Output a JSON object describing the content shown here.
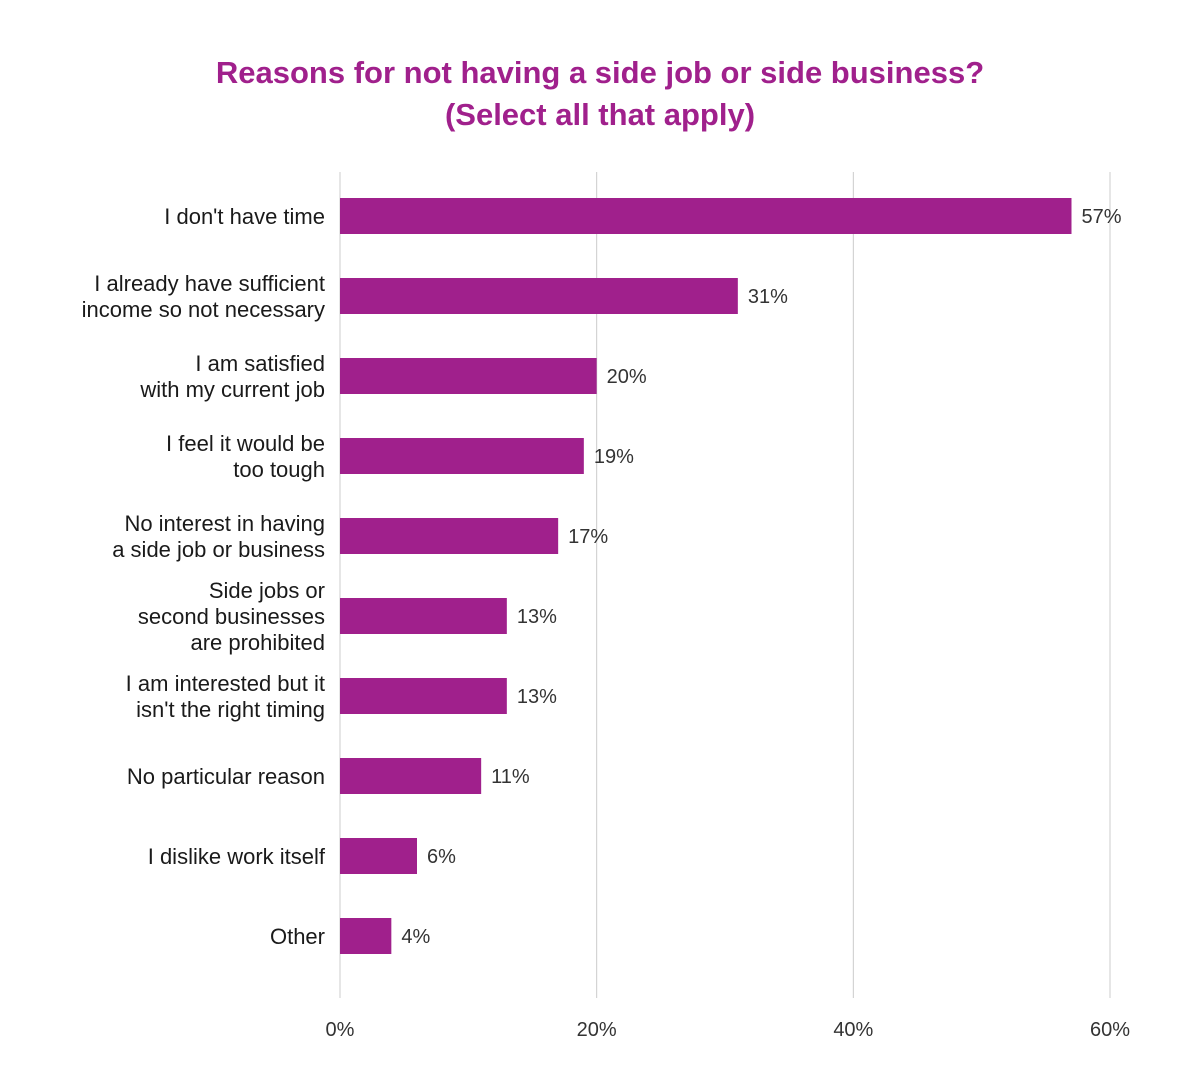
{
  "chart_data": {
    "type": "bar",
    "orientation": "horizontal",
    "title": [
      "Reasons for not having a side job or side business?",
      "(Select all that apply)"
    ],
    "categories": [
      [
        "I don't have time"
      ],
      [
        "I already have sufficient",
        "income so not necessary"
      ],
      [
        "I am satisfied",
        "with my current job"
      ],
      [
        "I feel it would be",
        "too tough"
      ],
      [
        "No interest in having",
        "a side job or business"
      ],
      [
        "Side jobs or",
        "second businesses",
        "are prohibited"
      ],
      [
        "I am interested but it",
        "isn't the right timing"
      ],
      [
        "No particular reason"
      ],
      [
        "I dislike work itself"
      ],
      [
        "Other"
      ]
    ],
    "values": [
      57,
      31,
      20,
      19,
      17,
      13,
      13,
      11,
      6,
      4
    ],
    "value_labels": [
      "57%",
      "31%",
      "20%",
      "19%",
      "17%",
      "13%",
      "13%",
      "11%",
      "6%",
      "4%"
    ],
    "xlim": [
      0,
      60
    ],
    "ticks": [
      0,
      20,
      40,
      60
    ],
    "tick_labels": [
      "0%",
      "20%",
      "40%",
      "60%"
    ],
    "grid": true,
    "bar_color": "#a0208c",
    "grid_color": "#cccccc"
  }
}
